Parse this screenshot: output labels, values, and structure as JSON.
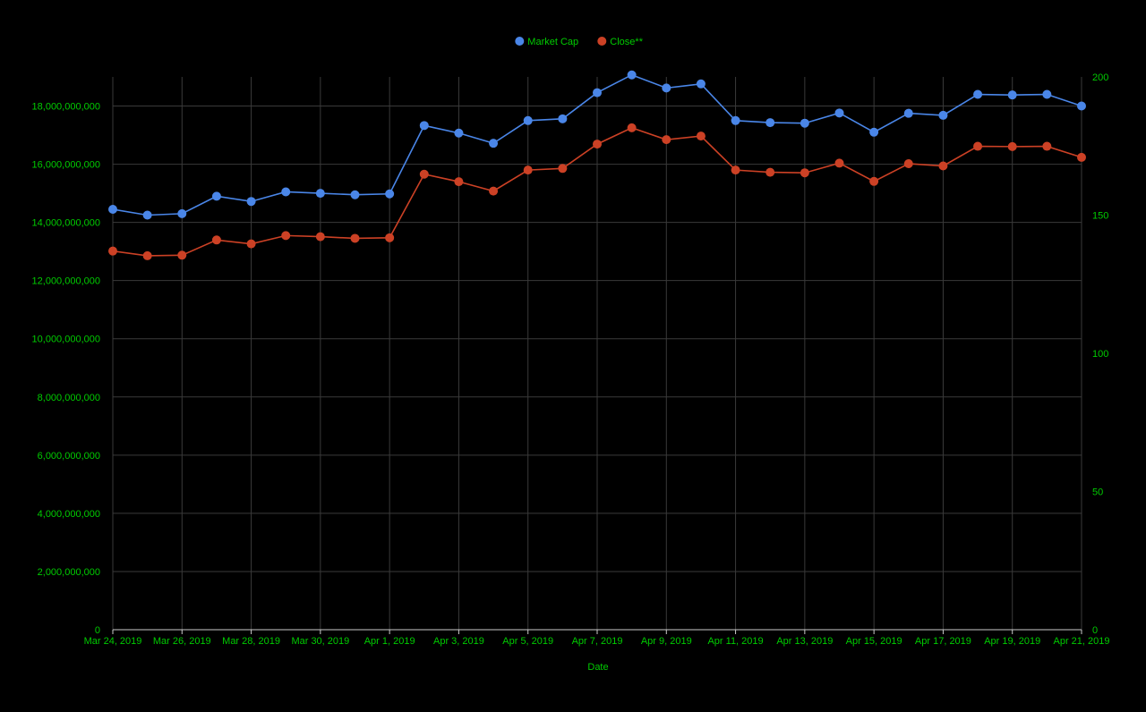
{
  "chart_data": {
    "type": "line",
    "xlabel": "Date",
    "ylabel": "",
    "y2label": "",
    "legend_position": "top",
    "grid": true,
    "x": [
      "Mar 24, 2019",
      "Mar 25, 2019",
      "Mar 26, 2019",
      "Mar 27, 2019",
      "Mar 28, 2019",
      "Mar 29, 2019",
      "Mar 30, 2019",
      "Mar 31, 2019",
      "Apr 1, 2019",
      "Apr 2, 2019",
      "Apr 3, 2019",
      "Apr 4, 2019",
      "Apr 5, 2019",
      "Apr 6, 2019",
      "Apr 7, 2019",
      "Apr 8, 2019",
      "Apr 9, 2019",
      "Apr 10, 2019",
      "Apr 11, 2019",
      "Apr 12, 2019",
      "Apr 13, 2019",
      "Apr 14, 2019",
      "Apr 15, 2019",
      "Apr 16, 2019",
      "Apr 17, 2019",
      "Apr 18, 2019",
      "Apr 19, 2019",
      "Apr 20, 2019",
      "Apr 21, 2019"
    ],
    "x_tick_labels": [
      "Mar 24, 2019",
      "Mar 26, 2019",
      "Mar 28, 2019",
      "Mar 30, 2019",
      "Apr 1, 2019",
      "Apr 3, 2019",
      "Apr 5, 2019",
      "Apr 7, 2019",
      "Apr 9, 2019",
      "Apr 11, 2019",
      "Apr 13, 2019",
      "Apr 15, 2019",
      "Apr 17, 2019",
      "Apr 19, 2019",
      "Apr 21, 2019"
    ],
    "y_left": {
      "range": [
        0,
        19000000000
      ],
      "ticks": [
        0,
        2000000000,
        4000000000,
        6000000000,
        8000000000,
        10000000000,
        12000000000,
        14000000000,
        16000000000,
        18000000000
      ],
      "tick_labels": [
        "0",
        "2,000,000,000",
        "4,000,000,000",
        "6,000,000,000",
        "8,000,000,000",
        "10,000,000,000",
        "12,000,000,000",
        "14,000,000,000",
        "16,000,000,000",
        "18,000,000,000"
      ]
    },
    "y_right": {
      "range": [
        0,
        200
      ],
      "ticks": [
        0,
        50,
        100,
        150,
        200
      ],
      "tick_labels": [
        "0",
        "50",
        "100",
        "150",
        "200"
      ]
    },
    "series": [
      {
        "name": "Market Cap",
        "axis": "left",
        "color": "#4a86e8",
        "values": [
          14450000000,
          14250000000,
          14300000000,
          14900000000,
          14720000000,
          15050000000,
          15000000000,
          14950000000,
          14980000000,
          17330000000,
          17070000000,
          16720000000,
          17500000000,
          17560000000,
          18460000000,
          19070000000,
          18620000000,
          18760000000,
          17500000000,
          17430000000,
          17410000000,
          17760000000,
          17100000000,
          17750000000,
          17680000000,
          18400000000,
          18380000000,
          18400000000,
          18000000000
        ]
      },
      {
        "name": "Close**",
        "axis": "right",
        "color": "#cc4125",
        "values": [
          137,
          135.3,
          135.5,
          141,
          139.6,
          142.6,
          142.2,
          141.6,
          141.8,
          164.8,
          162.1,
          158.7,
          166.3,
          166.9,
          175.7,
          181.6,
          177.3,
          178.6,
          166.3,
          165.5,
          165.3,
          168.8,
          162.2,
          168.6,
          167.8,
          174.9,
          174.8,
          174.9,
          170.9
        ]
      }
    ]
  },
  "style": {
    "background": "#000000",
    "text_color": "#00cc00",
    "grid_color": "#3a3a3a",
    "axis_color": "#cccccc"
  }
}
